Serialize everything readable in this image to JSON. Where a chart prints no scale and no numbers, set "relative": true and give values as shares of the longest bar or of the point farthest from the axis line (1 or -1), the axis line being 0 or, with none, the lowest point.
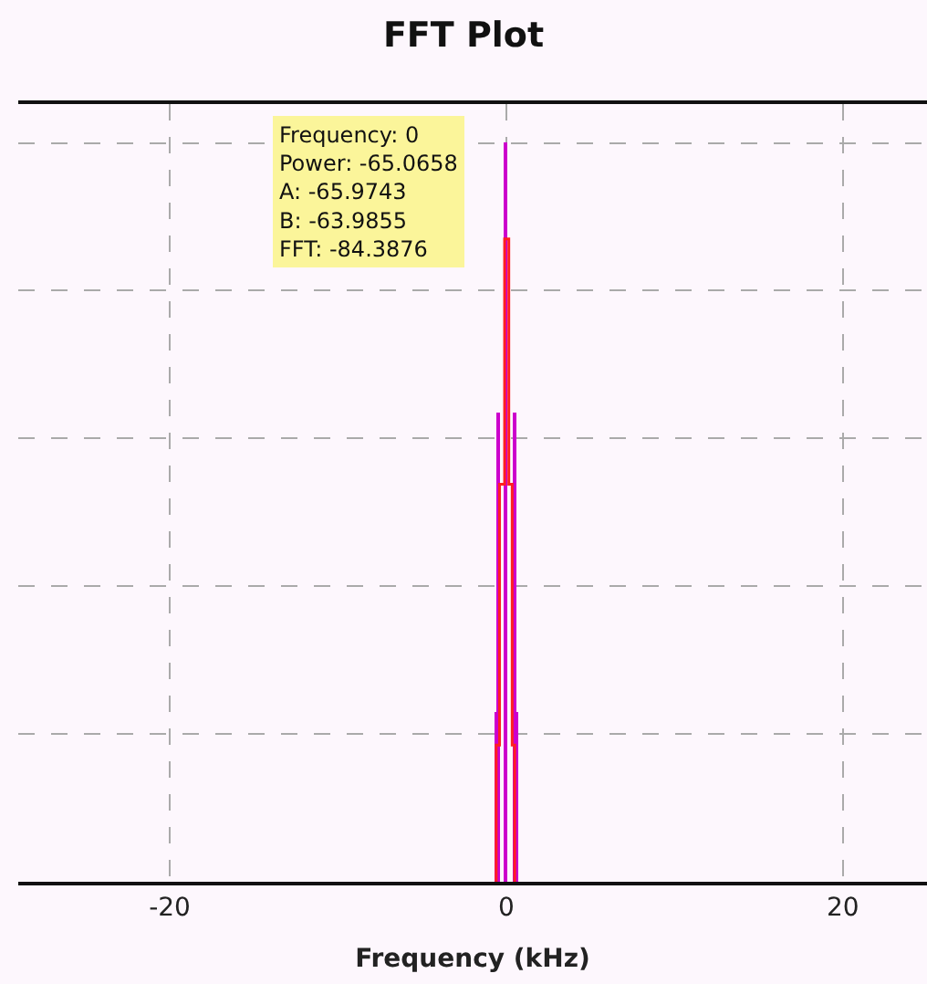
{
  "chart_data": {
    "type": "step",
    "title": "FFT Plot",
    "xlabel": "Frequency (kHz)",
    "relative": true,
    "xlim": [
      -29,
      25
    ],
    "xticks": [
      -20,
      0,
      20
    ],
    "grid": true,
    "line_style": "solid",
    "annotations": [
      "Frequency: 0\nPower: -65.0658\nA: -65.9743\nB: -63.9855\nFFT: -84.3876"
    ],
    "series": [
      {
        "type": "bar",
        "color": "#cc00cc",
        "x": [
          -0.6,
          -0.45,
          0,
          0.45,
          0.6
        ],
        "values": [
          0.229,
          0.636,
          1.0,
          0.636,
          0.229
        ]
      },
      {
        "color": "#ff2020",
        "x": [
          -0.6,
          -0.6,
          -0.4,
          -0.1,
          0.15,
          0.35,
          0.5
        ],
        "values": [
          0,
          0.185,
          0.538,
          0.87,
          0.538,
          0.185,
          0
        ]
      }
    ]
  }
}
